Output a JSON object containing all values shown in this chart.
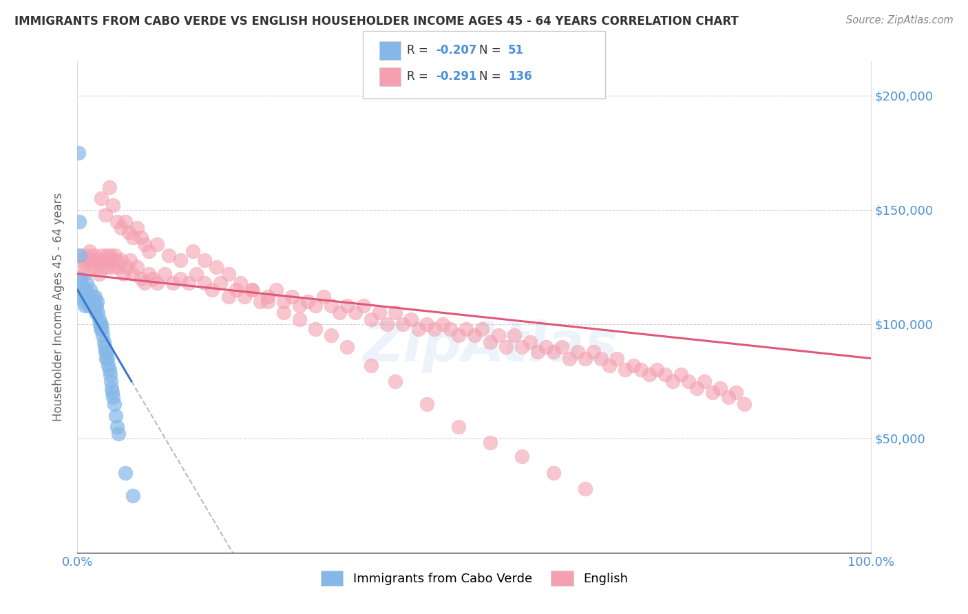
{
  "title": "IMMIGRANTS FROM CABO VERDE VS ENGLISH HOUSEHOLDER INCOME AGES 45 - 64 YEARS CORRELATION CHART",
  "source": "Source: ZipAtlas.com",
  "ylabel": "Householder Income Ages 45 - 64 years",
  "xmin": 0.0,
  "xmax": 1.0,
  "ymin": 0,
  "ymax": 215000,
  "yticks": [
    0,
    50000,
    100000,
    150000,
    200000
  ],
  "ytick_labels": [
    "",
    "$50,000",
    "$100,000",
    "$150,000",
    "$200,000"
  ],
  "blue_R": -0.207,
  "blue_N": 51,
  "pink_R": -0.291,
  "pink_N": 136,
  "blue_color": "#85b8e8",
  "pink_color": "#f4a0b0",
  "blue_edge_color": "#6aaae0",
  "pink_edge_color": "#e87090",
  "blue_label": "Immigrants from Cabo Verde",
  "pink_label": "English",
  "blue_line_color": "#3a78c9",
  "pink_line_color": "#e05878",
  "dash_color": "#bbbbbb",
  "blue_scatter_x": [
    0.001,
    0.002,
    0.003,
    0.004,
    0.005,
    0.006,
    0.007,
    0.008,
    0.009,
    0.01,
    0.011,
    0.012,
    0.013,
    0.014,
    0.015,
    0.016,
    0.017,
    0.018,
    0.019,
    0.02,
    0.021,
    0.022,
    0.023,
    0.024,
    0.025,
    0.026,
    0.027,
    0.028,
    0.029,
    0.03,
    0.031,
    0.032,
    0.033,
    0.034,
    0.035,
    0.036,
    0.037,
    0.038,
    0.039,
    0.04,
    0.041,
    0.042,
    0.043,
    0.044,
    0.045,
    0.046,
    0.048,
    0.05,
    0.052,
    0.06,
    0.07
  ],
  "blue_scatter_y": [
    175000,
    145000,
    130000,
    120000,
    118000,
    115000,
    112000,
    110000,
    108000,
    115000,
    112000,
    118000,
    110000,
    108000,
    112000,
    115000,
    110000,
    108000,
    112000,
    110000,
    108000,
    112000,
    105000,
    108000,
    110000,
    105000,
    102000,
    100000,
    98000,
    100000,
    98000,
    95000,
    92000,
    90000,
    88000,
    85000,
    88000,
    85000,
    82000,
    80000,
    78000,
    75000,
    72000,
    70000,
    68000,
    65000,
    60000,
    55000,
    52000,
    35000,
    25000
  ],
  "pink_scatter_x": [
    0.003,
    0.005,
    0.007,
    0.009,
    0.011,
    0.013,
    0.015,
    0.017,
    0.019,
    0.021,
    0.023,
    0.025,
    0.027,
    0.029,
    0.031,
    0.033,
    0.035,
    0.037,
    0.039,
    0.041,
    0.043,
    0.045,
    0.047,
    0.049,
    0.052,
    0.055,
    0.058,
    0.062,
    0.066,
    0.07,
    0.075,
    0.08,
    0.085,
    0.09,
    0.095,
    0.1,
    0.11,
    0.12,
    0.13,
    0.14,
    0.15,
    0.16,
    0.17,
    0.18,
    0.19,
    0.2,
    0.21,
    0.22,
    0.23,
    0.24,
    0.25,
    0.26,
    0.27,
    0.28,
    0.29,
    0.3,
    0.31,
    0.32,
    0.33,
    0.34,
    0.35,
    0.36,
    0.37,
    0.38,
    0.39,
    0.4,
    0.41,
    0.42,
    0.43,
    0.44,
    0.45,
    0.46,
    0.47,
    0.48,
    0.49,
    0.5,
    0.51,
    0.52,
    0.53,
    0.54,
    0.55,
    0.56,
    0.57,
    0.58,
    0.59,
    0.6,
    0.61,
    0.62,
    0.63,
    0.64,
    0.65,
    0.66,
    0.67,
    0.68,
    0.69,
    0.7,
    0.71,
    0.72,
    0.73,
    0.74,
    0.75,
    0.76,
    0.77,
    0.78,
    0.79,
    0.8,
    0.81,
    0.82,
    0.83,
    0.84,
    0.03,
    0.035,
    0.04,
    0.045,
    0.05,
    0.055,
    0.06,
    0.065,
    0.07,
    0.075,
    0.08,
    0.085,
    0.09,
    0.1,
    0.115,
    0.13,
    0.145,
    0.16,
    0.175,
    0.19,
    0.205,
    0.22,
    0.24,
    0.26,
    0.28,
    0.3,
    0.32,
    0.34,
    0.37,
    0.4,
    0.44,
    0.48,
    0.52,
    0.56,
    0.6,
    0.64
  ],
  "pink_scatter_y": [
    130000,
    128000,
    125000,
    122000,
    128000,
    130000,
    132000,
    128000,
    125000,
    130000,
    128000,
    125000,
    122000,
    128000,
    130000,
    125000,
    128000,
    130000,
    125000,
    130000,
    128000,
    125000,
    130000,
    128000,
    125000,
    128000,
    122000,
    125000,
    128000,
    122000,
    125000,
    120000,
    118000,
    122000,
    120000,
    118000,
    122000,
    118000,
    120000,
    118000,
    122000,
    118000,
    115000,
    118000,
    112000,
    115000,
    112000,
    115000,
    110000,
    112000,
    115000,
    110000,
    112000,
    108000,
    110000,
    108000,
    112000,
    108000,
    105000,
    108000,
    105000,
    108000,
    102000,
    105000,
    100000,
    105000,
    100000,
    102000,
    98000,
    100000,
    98000,
    100000,
    98000,
    95000,
    98000,
    95000,
    98000,
    92000,
    95000,
    90000,
    95000,
    90000,
    92000,
    88000,
    90000,
    88000,
    90000,
    85000,
    88000,
    85000,
    88000,
    85000,
    82000,
    85000,
    80000,
    82000,
    80000,
    78000,
    80000,
    78000,
    75000,
    78000,
    75000,
    72000,
    75000,
    70000,
    72000,
    68000,
    70000,
    65000,
    155000,
    148000,
    160000,
    152000,
    145000,
    142000,
    145000,
    140000,
    138000,
    142000,
    138000,
    135000,
    132000,
    135000,
    130000,
    128000,
    132000,
    128000,
    125000,
    122000,
    118000,
    115000,
    110000,
    105000,
    102000,
    98000,
    95000,
    90000,
    82000,
    75000,
    65000,
    55000,
    48000,
    42000,
    35000,
    28000
  ]
}
